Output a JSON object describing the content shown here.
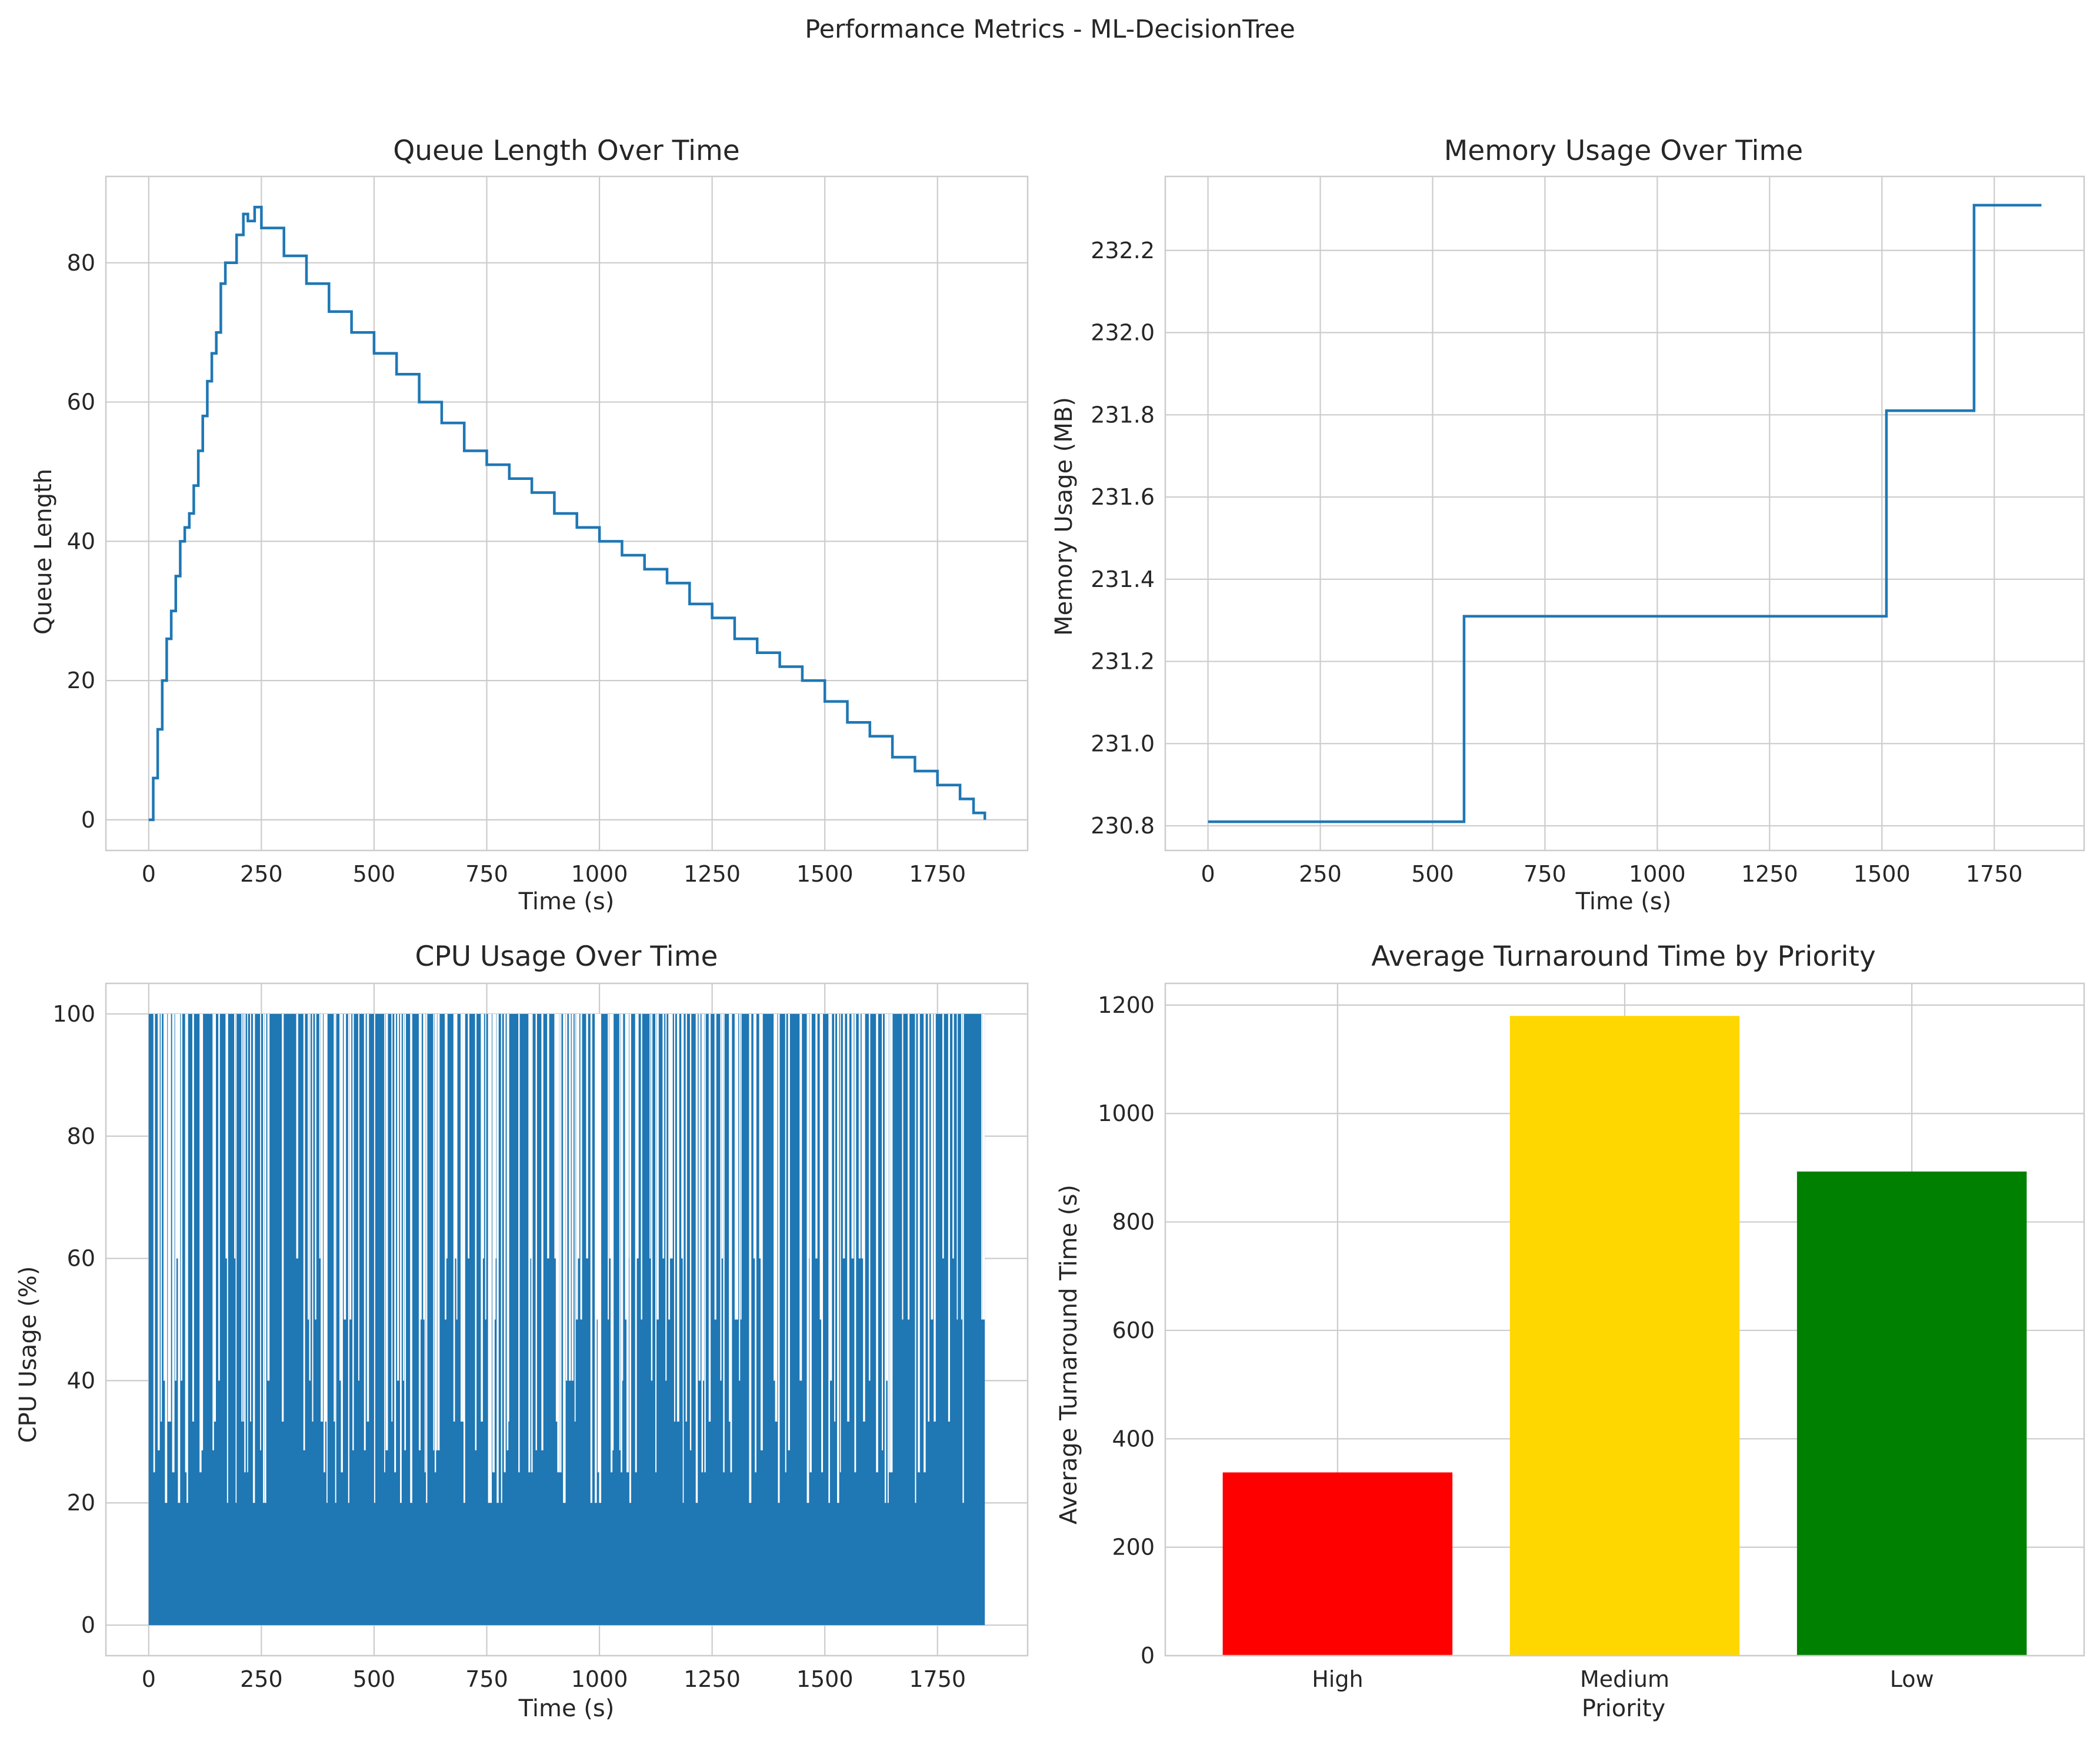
{
  "figure": {
    "suptitle": "Performance Metrics - ML-DecisionTree"
  },
  "chart_data": [
    {
      "id": "queue",
      "type": "line",
      "title": "Queue Length Over Time",
      "xlabel": "Time (s)",
      "ylabel": "Queue Length",
      "xlim": [
        -95,
        1950
      ],
      "ylim": [
        -4.4,
        92.4
      ],
      "xticks": [
        0,
        250,
        500,
        750,
        1000,
        1250,
        1500,
        1750
      ],
      "yticks": [
        0,
        20,
        40,
        60,
        80
      ],
      "grid": true,
      "color": "#1f77b4",
      "drawstyle": "steps",
      "series": [
        {
          "x": [
            0,
            10,
            20,
            30,
            40,
            50,
            60,
            70,
            80,
            90,
            100,
            110,
            120,
            130,
            140,
            150,
            160,
            170,
            180,
            195,
            210,
            220,
            235,
            250,
            300,
            350,
            400,
            450,
            500,
            550,
            600,
            650,
            700,
            750,
            800,
            850,
            900,
            950,
            1000,
            1050,
            1100,
            1150,
            1200,
            1250,
            1300,
            1350,
            1400,
            1450,
            1500,
            1550,
            1600,
            1650,
            1700,
            1750,
            1800,
            1830,
            1855
          ],
          "y": [
            0,
            6,
            13,
            20,
            26,
            30,
            35,
            40,
            42,
            44,
            48,
            53,
            58,
            63,
            67,
            70,
            77,
            80,
            80,
            84,
            87,
            86,
            88,
            85,
            81,
            77,
            73,
            70,
            67,
            64,
            60,
            57,
            53,
            51,
            49,
            47,
            44,
            42,
            40,
            38,
            36,
            34,
            31,
            29,
            26,
            24,
            22,
            20,
            17,
            14,
            12,
            9,
            7,
            5,
            3,
            1,
            0
          ]
        }
      ]
    },
    {
      "id": "memory",
      "type": "line",
      "title": "Memory Usage Over Time",
      "xlabel": "Time (s)",
      "ylabel": "Memory Usage (MB)",
      "xlim": [
        -95,
        1950
      ],
      "ylim": [
        230.74,
        232.38
      ],
      "xticks": [
        0,
        250,
        500,
        750,
        1000,
        1250,
        1500,
        1750
      ],
      "yticks": [
        230.8,
        231.0,
        231.2,
        231.4,
        231.6,
        231.8,
        232.0,
        232.2
      ],
      "ytick_format": "fixed1",
      "grid": true,
      "color": "#1f77b4",
      "drawstyle": "steps",
      "series": [
        {
          "x": [
            0,
            570,
            1510,
            1705,
            1855
          ],
          "y": [
            230.81,
            231.31,
            231.81,
            232.31,
            232.31
          ]
        }
      ]
    },
    {
      "id": "cpu",
      "type": "line",
      "title": "CPU Usage Over Time",
      "xlabel": "Time (s)",
      "ylabel": "CPU Usage (%)",
      "xlim": [
        -95,
        1950
      ],
      "ylim": [
        -5,
        105
      ],
      "xticks": [
        0,
        250,
        500,
        750,
        1000,
        1250,
        1500,
        1750
      ],
      "yticks": [
        0,
        20,
        40,
        60,
        80,
        100
      ],
      "grid": true,
      "color": "#1f77b4",
      "x_range": [
        0,
        1855
      ],
      "levels": [
        0,
        20,
        25,
        28.6,
        33.3,
        40,
        50,
        60,
        100
      ],
      "note_series": "dense oscillating series between 0 and 100 with intermediate levels"
    },
    {
      "id": "turnaround",
      "type": "bar",
      "title": "Average Turnaround Time by Priority",
      "xlabel": "Priority",
      "ylabel": "Average Turnaround Time (s)",
      "categories": [
        "High",
        "Medium",
        "Low"
      ],
      "values": [
        338,
        1180,
        893
      ],
      "colors": [
        "#ff0000",
        "#ffd700",
        "#008000"
      ],
      "ylim": [
        0,
        1240
      ],
      "yticks": [
        0,
        200,
        400,
        600,
        800,
        1000,
        1200
      ],
      "grid": true
    }
  ]
}
